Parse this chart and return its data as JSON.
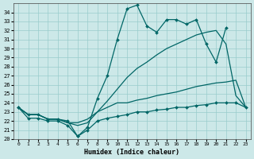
{
  "xlabel": "Humidex (Indice chaleur)",
  "background_color": "#cce8e8",
  "grid_color": "#99cccc",
  "line_color": "#006666",
  "xlim": [
    -0.5,
    23.5
  ],
  "ylim": [
    20,
    35
  ],
  "yticks": [
    20,
    21,
    22,
    23,
    24,
    25,
    26,
    27,
    28,
    29,
    30,
    31,
    32,
    33,
    34
  ],
  "xticks": [
    0,
    1,
    2,
    3,
    4,
    5,
    6,
    7,
    8,
    9,
    10,
    11,
    12,
    13,
    14,
    15,
    16,
    17,
    18,
    19,
    20,
    21,
    22,
    23
  ],
  "s1_x": [
    0,
    1,
    2,
    3,
    4,
    5,
    6,
    7,
    8,
    9,
    10,
    11,
    12,
    13,
    14,
    15,
    16,
    17,
    18,
    19,
    20,
    21
  ],
  "s1_y": [
    23.5,
    22.7,
    22.7,
    22.2,
    22.2,
    22.0,
    20.3,
    21.3,
    24.5,
    27.0,
    31.0,
    34.4,
    34.8,
    32.5,
    31.8,
    33.2,
    33.2,
    32.7,
    33.2,
    30.5,
    28.5,
    32.3
  ],
  "s2_x": [
    0,
    1,
    2,
    3,
    4,
    5,
    6,
    7,
    8,
    9,
    10,
    11,
    12,
    13,
    14,
    15,
    16,
    17,
    18,
    19,
    20,
    21,
    22,
    23
  ],
  "s2_y": [
    23.5,
    22.7,
    22.7,
    22.2,
    22.2,
    21.8,
    21.5,
    21.8,
    23.0,
    24.2,
    25.5,
    26.8,
    27.8,
    28.5,
    29.3,
    30.0,
    30.5,
    31.0,
    31.5,
    31.8,
    32.0,
    30.5,
    24.8,
    23.5
  ],
  "s3_x": [
    0,
    1,
    2,
    3,
    4,
    5,
    6,
    7,
    8,
    9,
    10,
    11,
    12,
    13,
    14,
    15,
    16,
    17,
    18,
    19,
    20,
    21,
    22,
    23
  ],
  "s3_y": [
    23.5,
    22.7,
    22.7,
    22.2,
    22.2,
    21.8,
    21.8,
    22.2,
    23.0,
    23.5,
    24.0,
    24.0,
    24.3,
    24.5,
    24.8,
    25.0,
    25.2,
    25.5,
    25.8,
    26.0,
    26.2,
    26.3,
    26.5,
    23.5
  ],
  "s4_x": [
    0,
    1,
    2,
    3,
    4,
    5,
    6,
    7,
    8,
    9,
    10,
    11,
    12,
    13,
    14,
    15,
    16,
    17,
    18,
    19,
    20,
    21,
    22,
    23
  ],
  "s4_y": [
    23.5,
    22.3,
    22.3,
    22.0,
    22.0,
    21.5,
    20.3,
    21.0,
    22.0,
    22.3,
    22.5,
    22.7,
    23.0,
    23.0,
    23.2,
    23.3,
    23.5,
    23.5,
    23.7,
    23.8,
    24.0,
    24.0,
    24.0,
    23.5
  ]
}
